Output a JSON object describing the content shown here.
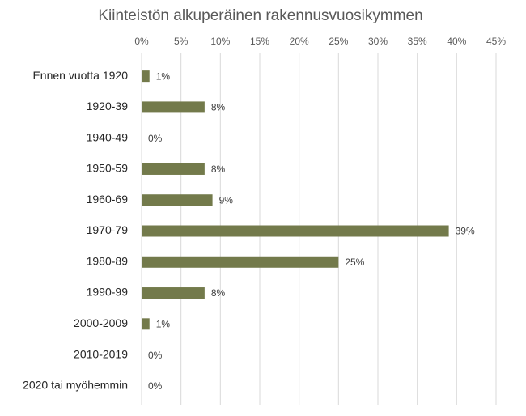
{
  "chart_data": {
    "type": "bar",
    "title": "Kiinteistön alkuperäinen rakennusvuosikymmen",
    "categories": [
      "Ennen vuotta 1920",
      "1920-39",
      "1940-49",
      "1950-59",
      "1960-69",
      "1970-79",
      "1980-89",
      "1990-99",
      "2000-2009",
      "2010-2019",
      "2020 tai myöhemmin"
    ],
    "values": [
      1,
      8,
      0,
      8,
      9,
      39,
      25,
      8,
      1,
      0,
      0
    ],
    "value_labels": [
      "1%",
      "8%",
      "0%",
      "8%",
      "9%",
      "39%",
      "25%",
      "8%",
      "1%",
      "0%",
      "0%"
    ],
    "color": "#737a4b",
    "xlim": [
      0,
      45
    ],
    "xticks": [
      {
        "value": 0,
        "label": "0%"
      },
      {
        "value": 5,
        "label": "5%"
      },
      {
        "value": 10,
        "label": "10%"
      },
      {
        "value": 15,
        "label": "15%"
      },
      {
        "value": 20,
        "label": "20%"
      },
      {
        "value": 25,
        "label": "25%"
      },
      {
        "value": 30,
        "label": "30%"
      },
      {
        "value": 35,
        "label": "35%"
      },
      {
        "value": 40,
        "label": "40%"
      },
      {
        "value": 45,
        "label": "45%"
      }
    ],
    "grid": true
  }
}
